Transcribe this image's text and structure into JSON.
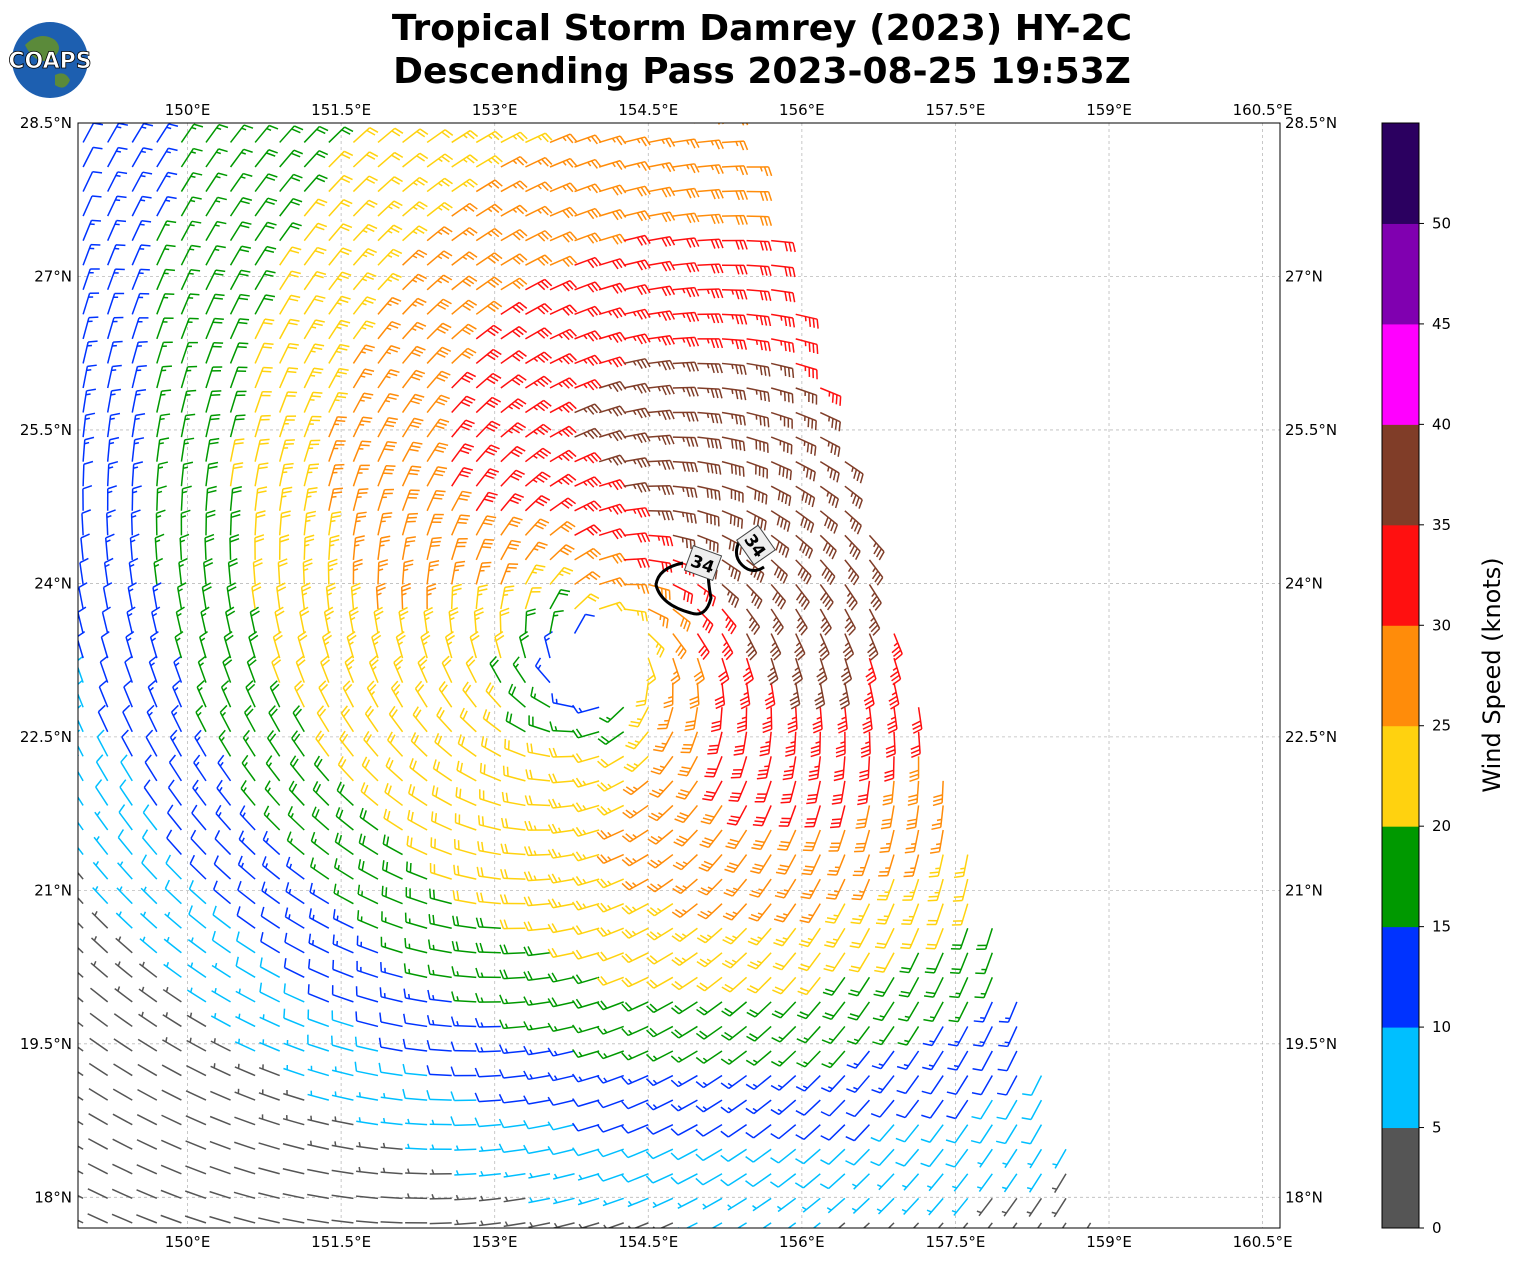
{
  "title": {
    "line1": "Tropical Storm Damrey (2023) HY-2C",
    "line2": "Descending Pass 2023-08-25 19:53Z"
  },
  "logo": {
    "text": "COAPS"
  },
  "chart_data": {
    "type": "wind-barb-map",
    "lon_ticks": [
      "150°E",
      "151.5°E",
      "153°E",
      "154.5°E",
      "156°E",
      "157.5°E",
      "159°E",
      "160.5°E"
    ],
    "lon_values": [
      150,
      151.5,
      153,
      154.5,
      156,
      157.5,
      159,
      160.5
    ],
    "lat_ticks": [
      "28.5°N",
      "27°N",
      "25.5°N",
      "24°N",
      "22.5°N",
      "21°N",
      "19.5°N",
      "18°N"
    ],
    "lat_values": [
      28.5,
      27,
      25.5,
      24,
      22.5,
      21,
      19.5,
      18
    ],
    "lon_range": [
      148.93,
      160.67
    ],
    "lat_range": [
      17.7,
      28.5
    ],
    "storm_center": {
      "lon": 154.03,
      "lat": 23.25
    },
    "wind_model": {
      "vmax_kt": 30,
      "rmax_deg": 2.0,
      "asymmetry_kt": 7,
      "grid_step_deg": 0.24
    },
    "swath_right_edge": {
      "top": {
        "lat": 28.5,
        "lon": 155.35
      },
      "bottom": {
        "lat": 17.7,
        "lon": 158.87
      }
    },
    "contour_labels": [
      "34",
      "34"
    ],
    "colorbar": {
      "label": "Wind Speed (knots)",
      "bounds": [
        0,
        5,
        10,
        15,
        20,
        25,
        30,
        35,
        40,
        45,
        50,
        55
      ],
      "tick_labels": [
        "0",
        "5",
        "10",
        "15",
        "20",
        "25",
        "30",
        "35",
        "40",
        "45",
        "50"
      ],
      "colors": [
        "#555555",
        "#00bfff",
        "#0033ff",
        "#009900",
        "#ffd20f",
        "#ff8c0a",
        "#ff1010",
        "#803d28",
        "#ff00ff",
        "#8000b0",
        "#2b0060"
      ]
    }
  }
}
